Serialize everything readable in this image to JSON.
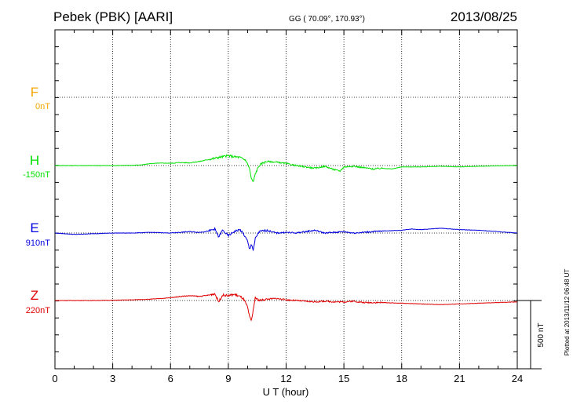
{
  "header": {
    "station": "Pebek (PBK)  [AARI]",
    "coords": "GG ( 70.09°, 170.93°)",
    "date": "2013/08/25"
  },
  "footer": {
    "plotted": "Plotted at 2013/11/12 06:48 UT"
  },
  "chart_data": {
    "type": "line",
    "title": "",
    "xlabel": "U T (hour)",
    "xlim": [
      0,
      24
    ],
    "xticks": [
      0,
      3,
      6,
      9,
      12,
      15,
      18,
      21,
      24
    ],
    "xtick_labels": [
      "0",
      "3",
      "6",
      "9",
      "12",
      "15",
      "18",
      "21",
      "24"
    ],
    "scale_bar_label": "500 nT",
    "scale_bar_nT": 500,
    "grid": "dotted",
    "colors": {
      "F": "#f5a500",
      "H": "#00e000",
      "E": "#0000e0",
      "Z": "#e00000"
    },
    "series": [
      {
        "name": "F",
        "baseline_label": "0nT",
        "x": [],
        "values": []
      },
      {
        "name": "H",
        "baseline_label": "-150nT",
        "x": [
          0,
          1,
          2,
          3,
          4,
          4.5,
          5,
          5.5,
          6,
          6.5,
          7,
          7.5,
          8,
          8.5,
          9,
          9.3,
          9.6,
          9.9,
          10.1,
          10.2,
          10.3,
          10.4,
          10.6,
          10.8,
          11,
          11.5,
          12,
          12.5,
          13,
          13.5,
          14,
          14.5,
          14.8,
          15,
          15.5,
          16,
          16.5,
          17,
          17.5,
          18,
          19,
          20,
          21,
          22,
          23,
          24
        ],
        "values": [
          0,
          0,
          0,
          0,
          2,
          5,
          15,
          18,
          17,
          22,
          20,
          30,
          45,
          60,
          72,
          65,
          60,
          40,
          -20,
          -100,
          -120,
          -60,
          0,
          20,
          30,
          25,
          15,
          0,
          -10,
          -20,
          -5,
          -30,
          -40,
          -10,
          -5,
          -15,
          -25,
          -20,
          -25,
          -10,
          -10,
          -5,
          -10,
          -5,
          -2,
          0
        ]
      },
      {
        "name": "E",
        "baseline_label": "910nT",
        "x": [
          0,
          1,
          2,
          3,
          4,
          5,
          6,
          6.5,
          7,
          7.5,
          8,
          8.3,
          8.5,
          8.7,
          9,
          9.3,
          9.6,
          9.8,
          10,
          10.1,
          10.2,
          10.3,
          10.4,
          10.6,
          11,
          11.5,
          12,
          12.5,
          13,
          13.5,
          14,
          14.5,
          15,
          15.5,
          16,
          17,
          18,
          18.5,
          19,
          19.5,
          20,
          21,
          22,
          23,
          24
        ],
        "values": [
          0,
          -10,
          -5,
          0,
          0,
          5,
          0,
          5,
          10,
          5,
          15,
          30,
          -30,
          20,
          -20,
          10,
          25,
          -10,
          -60,
          -120,
          -80,
          -130,
          -40,
          10,
          20,
          0,
          5,
          0,
          10,
          20,
          0,
          5,
          10,
          0,
          5,
          15,
          20,
          30,
          25,
          30,
          35,
          25,
          20,
          10,
          0
        ]
      },
      {
        "name": "Z",
        "baseline_label": "220nT",
        "x": [
          0,
          1,
          2,
          3,
          4,
          5,
          6,
          6.5,
          7,
          7.5,
          8,
          8.3,
          8.5,
          8.7,
          9,
          9.3,
          9.6,
          9.8,
          10,
          10.1,
          10.2,
          10.3,
          10.4,
          10.6,
          11,
          11.5,
          12,
          12.5,
          13,
          13.5,
          14,
          14.5,
          15,
          15.5,
          16,
          17,
          18,
          19,
          20,
          21,
          22,
          23,
          24
        ],
        "values": [
          0,
          0,
          0,
          2,
          5,
          10,
          20,
          30,
          35,
          30,
          40,
          50,
          -10,
          40,
          35,
          45,
          30,
          10,
          -50,
          -120,
          -150,
          -60,
          20,
          0,
          10,
          15,
          5,
          0,
          -5,
          -10,
          -5,
          -10,
          -10,
          -5,
          -15,
          -15,
          -20,
          -25,
          -30,
          -25,
          -20,
          -15,
          -10
        ]
      }
    ]
  }
}
